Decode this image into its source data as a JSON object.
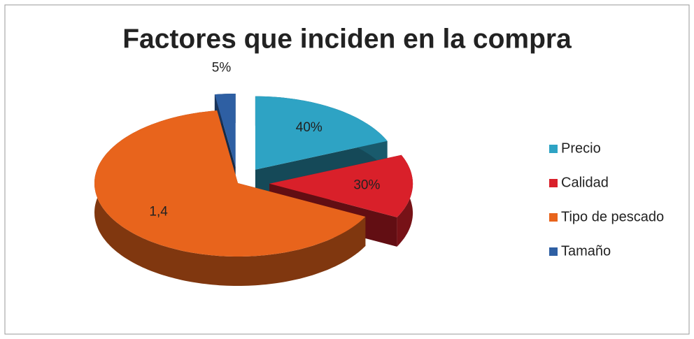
{
  "chart_data": {
    "type": "pie",
    "title": "Factores que inciden en la compra",
    "categories": [
      "Precio",
      "Calidad",
      "Tipo de pescado",
      "Tamaño"
    ],
    "values": [
      0.4,
      0.3,
      1.4,
      0.05
    ],
    "value_labels": [
      "40%",
      "30%",
      "1,4",
      "5%"
    ],
    "colors": [
      "#2ea3c4",
      "#d9202a",
      "#e8641c",
      "#2e5fa3"
    ],
    "legend": "right"
  }
}
